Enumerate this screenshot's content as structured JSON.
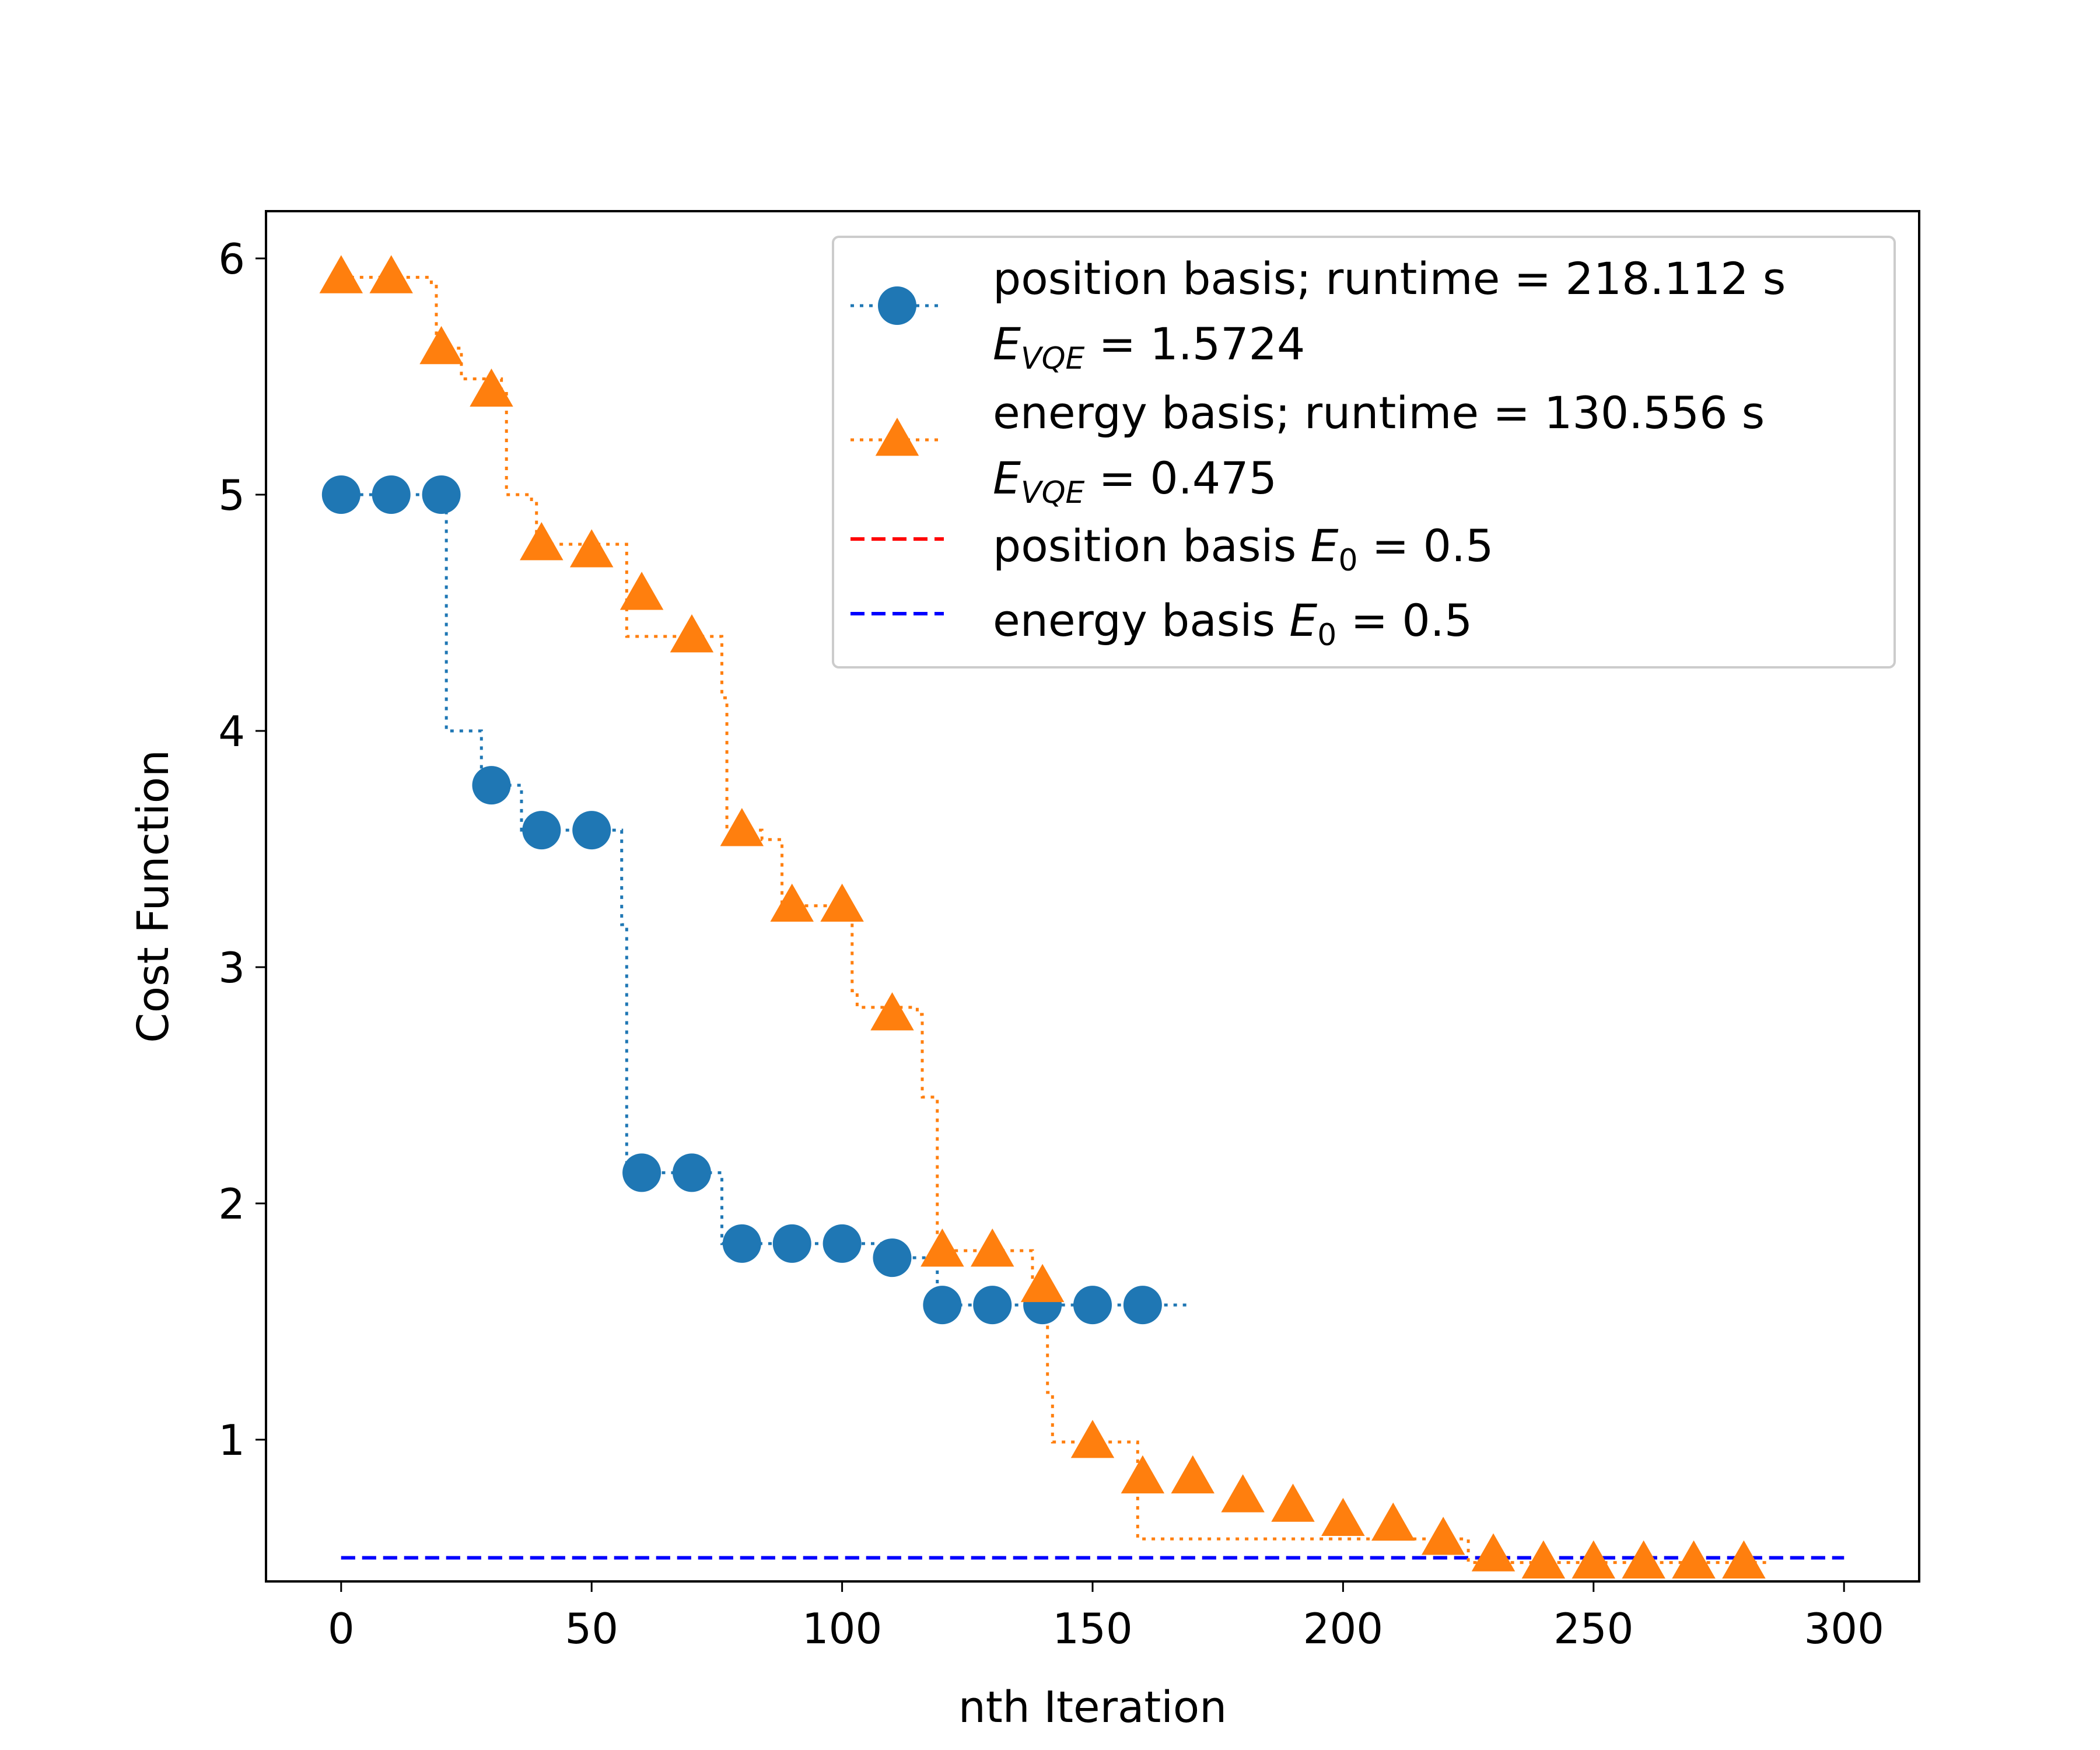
{
  "chart_data": {
    "type": "line",
    "title": "",
    "xlabel": "nth Iteration",
    "ylabel": "Cost Function",
    "xlim": [
      -15,
      315
    ],
    "ylim": [
      0.4,
      6.2
    ],
    "xticks": [
      0,
      50,
      100,
      150,
      200,
      250,
      300
    ],
    "yticks": [
      1,
      2,
      3,
      4,
      5,
      6
    ],
    "grid": false,
    "legend_position": "top-right",
    "series": [
      {
        "name": "position basis; runtime = 218.112 s",
        "legend_line2": {
          "prefix": "E",
          "sub": "VQE",
          "suffix": " = 1.5724"
        },
        "color": "#1f77b4",
        "marker": "circle",
        "x": [
          0,
          10,
          20,
          30,
          40,
          50,
          60,
          70,
          80,
          90,
          100,
          110,
          120,
          130,
          140,
          150,
          160
        ],
        "y": [
          5.0,
          5.0,
          5.0,
          3.77,
          3.58,
          3.58,
          2.13,
          2.13,
          1.83,
          1.83,
          1.83,
          1.77,
          1.57,
          1.57,
          1.57,
          1.57,
          1.57
        ],
        "step_x": [
          0,
          21,
          21,
          28,
          28,
          36,
          36,
          56,
          56,
          57,
          57,
          76,
          76,
          110,
          110,
          119,
          119,
          169
        ],
        "step_y": [
          5.0,
          5.0,
          4.0,
          4.0,
          3.77,
          3.77,
          3.58,
          3.58,
          3.18,
          3.18,
          2.13,
          2.13,
          1.83,
          1.83,
          1.77,
          1.77,
          1.57,
          1.57
        ]
      },
      {
        "name": "energy basis; runtime = 130.556 s",
        "legend_line2": {
          "prefix": "E",
          "sub": "VQE",
          "suffix": " = 0.475"
        },
        "color": "#ff7f0e",
        "marker": "triangle",
        "x": [
          0,
          10,
          20,
          30,
          40,
          50,
          60,
          70,
          80,
          90,
          100,
          110,
          120,
          130,
          140,
          150,
          160,
          170,
          180,
          190,
          200,
          210,
          220,
          230,
          240,
          250,
          260,
          270,
          280
        ],
        "y": [
          5.92,
          5.92,
          5.62,
          5.44,
          4.79,
          4.76,
          4.58,
          4.4,
          3.58,
          3.26,
          3.26,
          2.8,
          1.8,
          1.8,
          1.65,
          0.99,
          0.84,
          0.84,
          0.76,
          0.72,
          0.66,
          0.64,
          0.58,
          0.51,
          0.48,
          0.48,
          0.48,
          0.48,
          0.48
        ],
        "step_x": [
          0,
          18,
          18,
          19,
          19,
          24,
          24,
          32,
          32,
          33,
          33,
          38,
          38,
          39,
          39,
          57,
          57,
          76,
          76,
          77,
          77,
          84,
          84,
          88,
          88,
          102,
          102,
          103,
          103,
          115,
          115,
          116,
          116,
          119,
          119,
          120,
          120,
          138,
          138,
          141,
          141,
          142,
          142,
          159,
          159,
          225,
          225,
          285
        ],
        "step_y": [
          5.92,
          5.92,
          5.89,
          5.89,
          5.62,
          5.62,
          5.49,
          5.49,
          5.44,
          5.44,
          5.0,
          5.0,
          4.97,
          4.97,
          4.79,
          4.79,
          4.4,
          4.4,
          4.14,
          4.14,
          3.58,
          3.58,
          3.54,
          3.54,
          3.26,
          3.26,
          2.9,
          2.9,
          2.83,
          2.83,
          2.8,
          2.8,
          2.45,
          2.45,
          1.8,
          1.8,
          1.8,
          1.8,
          1.65,
          1.65,
          1.2,
          1.2,
          0.99,
          0.99,
          0.58,
          0.58,
          0.48,
          0.48
        ]
      },
      {
        "name": "position basis",
        "legend_line2": null,
        "legend_math": {
          "prefix": "E",
          "sub": "0",
          "suffix": " = 0.5"
        },
        "color": "#ff0000",
        "marker": "none",
        "dash": "dashed",
        "x": [
          0,
          300
        ],
        "y": [
          0.5,
          0.5
        ]
      },
      {
        "name": "energy basis",
        "legend_line2": null,
        "legend_math": {
          "prefix": "E",
          "sub": "0",
          "suffix": " = 0.5"
        },
        "color": "#0000ff",
        "marker": "none",
        "dash": "dashed",
        "x": [
          0,
          300
        ],
        "y": [
          0.5,
          0.5
        ]
      }
    ]
  }
}
